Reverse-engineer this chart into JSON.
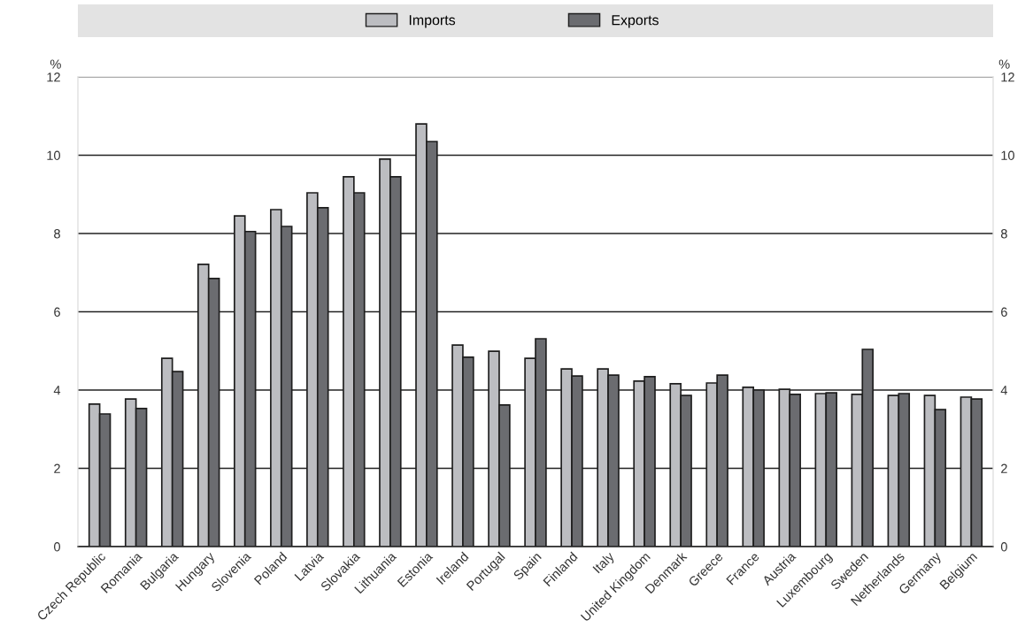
{
  "chart_data": {
    "type": "bar",
    "categories": [
      "Czech Republic",
      "Romania",
      "Bulgaria",
      "Hungary",
      "Slovenia",
      "Poland",
      "Latvia",
      "Slovakia",
      "Lithuania",
      "Estonia",
      "Ireland",
      "Portugal",
      "Spain",
      "Finland",
      "Italy",
      "United Kingdom",
      "Denmark",
      "Greece",
      "France",
      "Austria",
      "Luxembourg",
      "Sweden",
      "Netherlands",
      "Germany",
      "Belgium"
    ],
    "series": [
      {
        "name": "Imports",
        "color": "#bcbdc1",
        "values": [
          3.64,
          3.77,
          4.81,
          7.21,
          8.45,
          8.61,
          9.04,
          9.45,
          9.9,
          10.8,
          5.15,
          4.99,
          4.81,
          4.54,
          4.54,
          4.23,
          4.16,
          4.18,
          4.07,
          4.02,
          3.91,
          3.89,
          3.86,
          3.86,
          3.82
        ]
      },
      {
        "name": "Exports",
        "color": "#6b6c70",
        "values": [
          3.39,
          3.53,
          4.47,
          6.85,
          8.05,
          8.18,
          8.66,
          9.04,
          9.45,
          10.35,
          4.84,
          3.62,
          5.31,
          4.36,
          4.38,
          4.34,
          3.86,
          4.38,
          4.0,
          3.89,
          3.93,
          5.04,
          3.91,
          3.5,
          3.77
        ]
      }
    ],
    "ylabel": "%",
    "y2label": "%",
    "ylim": [
      0,
      12
    ],
    "yticks": [
      0,
      2,
      4,
      6,
      8,
      10,
      12
    ],
    "y2lim": [
      0,
      12
    ],
    "y2ticks": [
      0,
      2,
      4,
      6,
      8,
      10,
      12
    ],
    "grid": "y",
    "legend": "top"
  }
}
